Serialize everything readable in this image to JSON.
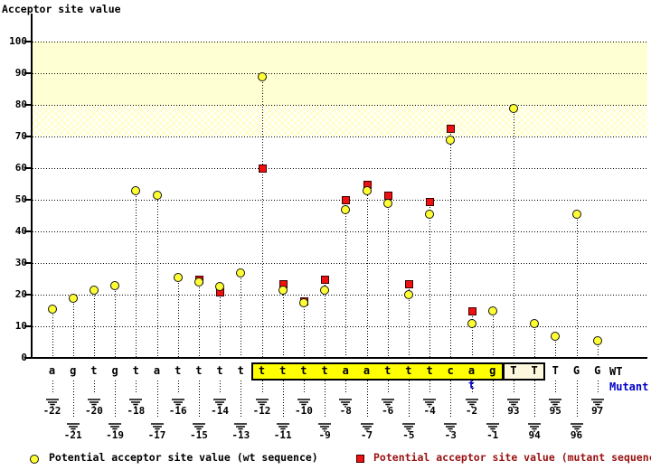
{
  "title": "Acceptor site value",
  "legend": {
    "wt_label": "Potential acceptor site value (wt sequence)",
    "mutant_label": "Potential acceptor site value (mutant sequence)"
  },
  "sequence_rows": {
    "wt_label": "WT",
    "mutant_label": "Mutant"
  },
  "colors": {
    "wt_marker": "#ffff33",
    "mutant_marker": "#ee1111",
    "mutant_text": "#0000cc",
    "legend_mutant_text": "#991111",
    "band_solid": "#ffffd4",
    "highlight_box": "#ffff00",
    "exon_box": "#fdf8dd"
  },
  "chart_data": {
    "type": "scatter",
    "ylabel": "Acceptor site value",
    "ylim": [
      0,
      105
    ],
    "yticks": [
      0,
      10,
      20,
      30,
      40,
      50,
      60,
      70,
      80,
      90,
      100
    ],
    "grid": "horizontal-dotted",
    "legend_position": "bottom",
    "bands": [
      {
        "from": 80,
        "to": 100,
        "style": "solid"
      },
      {
        "from": 70,
        "to": 80,
        "style": "hatched"
      }
    ],
    "series": [
      {
        "name": "Potential acceptor site value (wt sequence)",
        "marker": "yellow-circle"
      },
      {
        "name": "Potential acceptor site value (mutant sequence)",
        "marker": "red-square"
      }
    ],
    "highlight_range": {
      "from": "-12",
      "to": "-1",
      "style": "yellow-box"
    },
    "exon_box_range": {
      "from": "93",
      "to": "94",
      "style": "cream-box"
    },
    "mutant_base": {
      "pos": "-2",
      "base": "t"
    },
    "points": [
      {
        "pos": "-22",
        "base": "a",
        "wt": 15.5,
        "mut": null
      },
      {
        "pos": "-21",
        "base": "g",
        "wt": 19,
        "mut": null
      },
      {
        "pos": "-20",
        "base": "t",
        "wt": 21.5,
        "mut": null
      },
      {
        "pos": "-19",
        "base": "g",
        "wt": 23,
        "mut": null
      },
      {
        "pos": "-18",
        "base": "t",
        "wt": 53,
        "mut": null
      },
      {
        "pos": "-17",
        "base": "a",
        "wt": 51.5,
        "mut": null
      },
      {
        "pos": "-16",
        "base": "t",
        "wt": 25.5,
        "mut": null
      },
      {
        "pos": "-15",
        "base": "t",
        "wt": 24,
        "mut": 25
      },
      {
        "pos": "-14",
        "base": "t",
        "wt": 22.5,
        "mut": 21
      },
      {
        "pos": "-13",
        "base": "t",
        "wt": 27,
        "mut": null
      },
      {
        "pos": "-12",
        "base": "t",
        "wt": 89,
        "mut": 60
      },
      {
        "pos": "-11",
        "base": "t",
        "wt": 21.5,
        "mut": 23.5
      },
      {
        "pos": "-10",
        "base": "t",
        "wt": 17.5,
        "mut": 18
      },
      {
        "pos": "-9",
        "base": "t",
        "wt": 21.5,
        "mut": 25
      },
      {
        "pos": "-8",
        "base": "a",
        "wt": 47,
        "mut": 50
      },
      {
        "pos": "-7",
        "base": "a",
        "wt": 53,
        "mut": 55
      },
      {
        "pos": "-6",
        "base": "t",
        "wt": 49,
        "mut": 51.5
      },
      {
        "pos": "-5",
        "base": "t",
        "wt": 20,
        "mut": 23.5
      },
      {
        "pos": "-4",
        "base": "t",
        "wt": 45.5,
        "mut": 49.5
      },
      {
        "pos": "-3",
        "base": "c",
        "wt": 69,
        "mut": 72.5
      },
      {
        "pos": "-2",
        "base": "a",
        "wt": 11,
        "mut": 15
      },
      {
        "pos": "-1",
        "base": "g",
        "wt": 15,
        "mut": null
      },
      {
        "pos": "93",
        "base": "T",
        "wt": 79,
        "mut": null
      },
      {
        "pos": "94",
        "base": "T",
        "wt": 11,
        "mut": null
      },
      {
        "pos": "95",
        "base": "T",
        "wt": 7,
        "mut": null
      },
      {
        "pos": "96",
        "base": "G",
        "wt": 45.5,
        "mut": null
      },
      {
        "pos": "97",
        "base": "G",
        "wt": 5.5,
        "mut": null
      }
    ]
  }
}
